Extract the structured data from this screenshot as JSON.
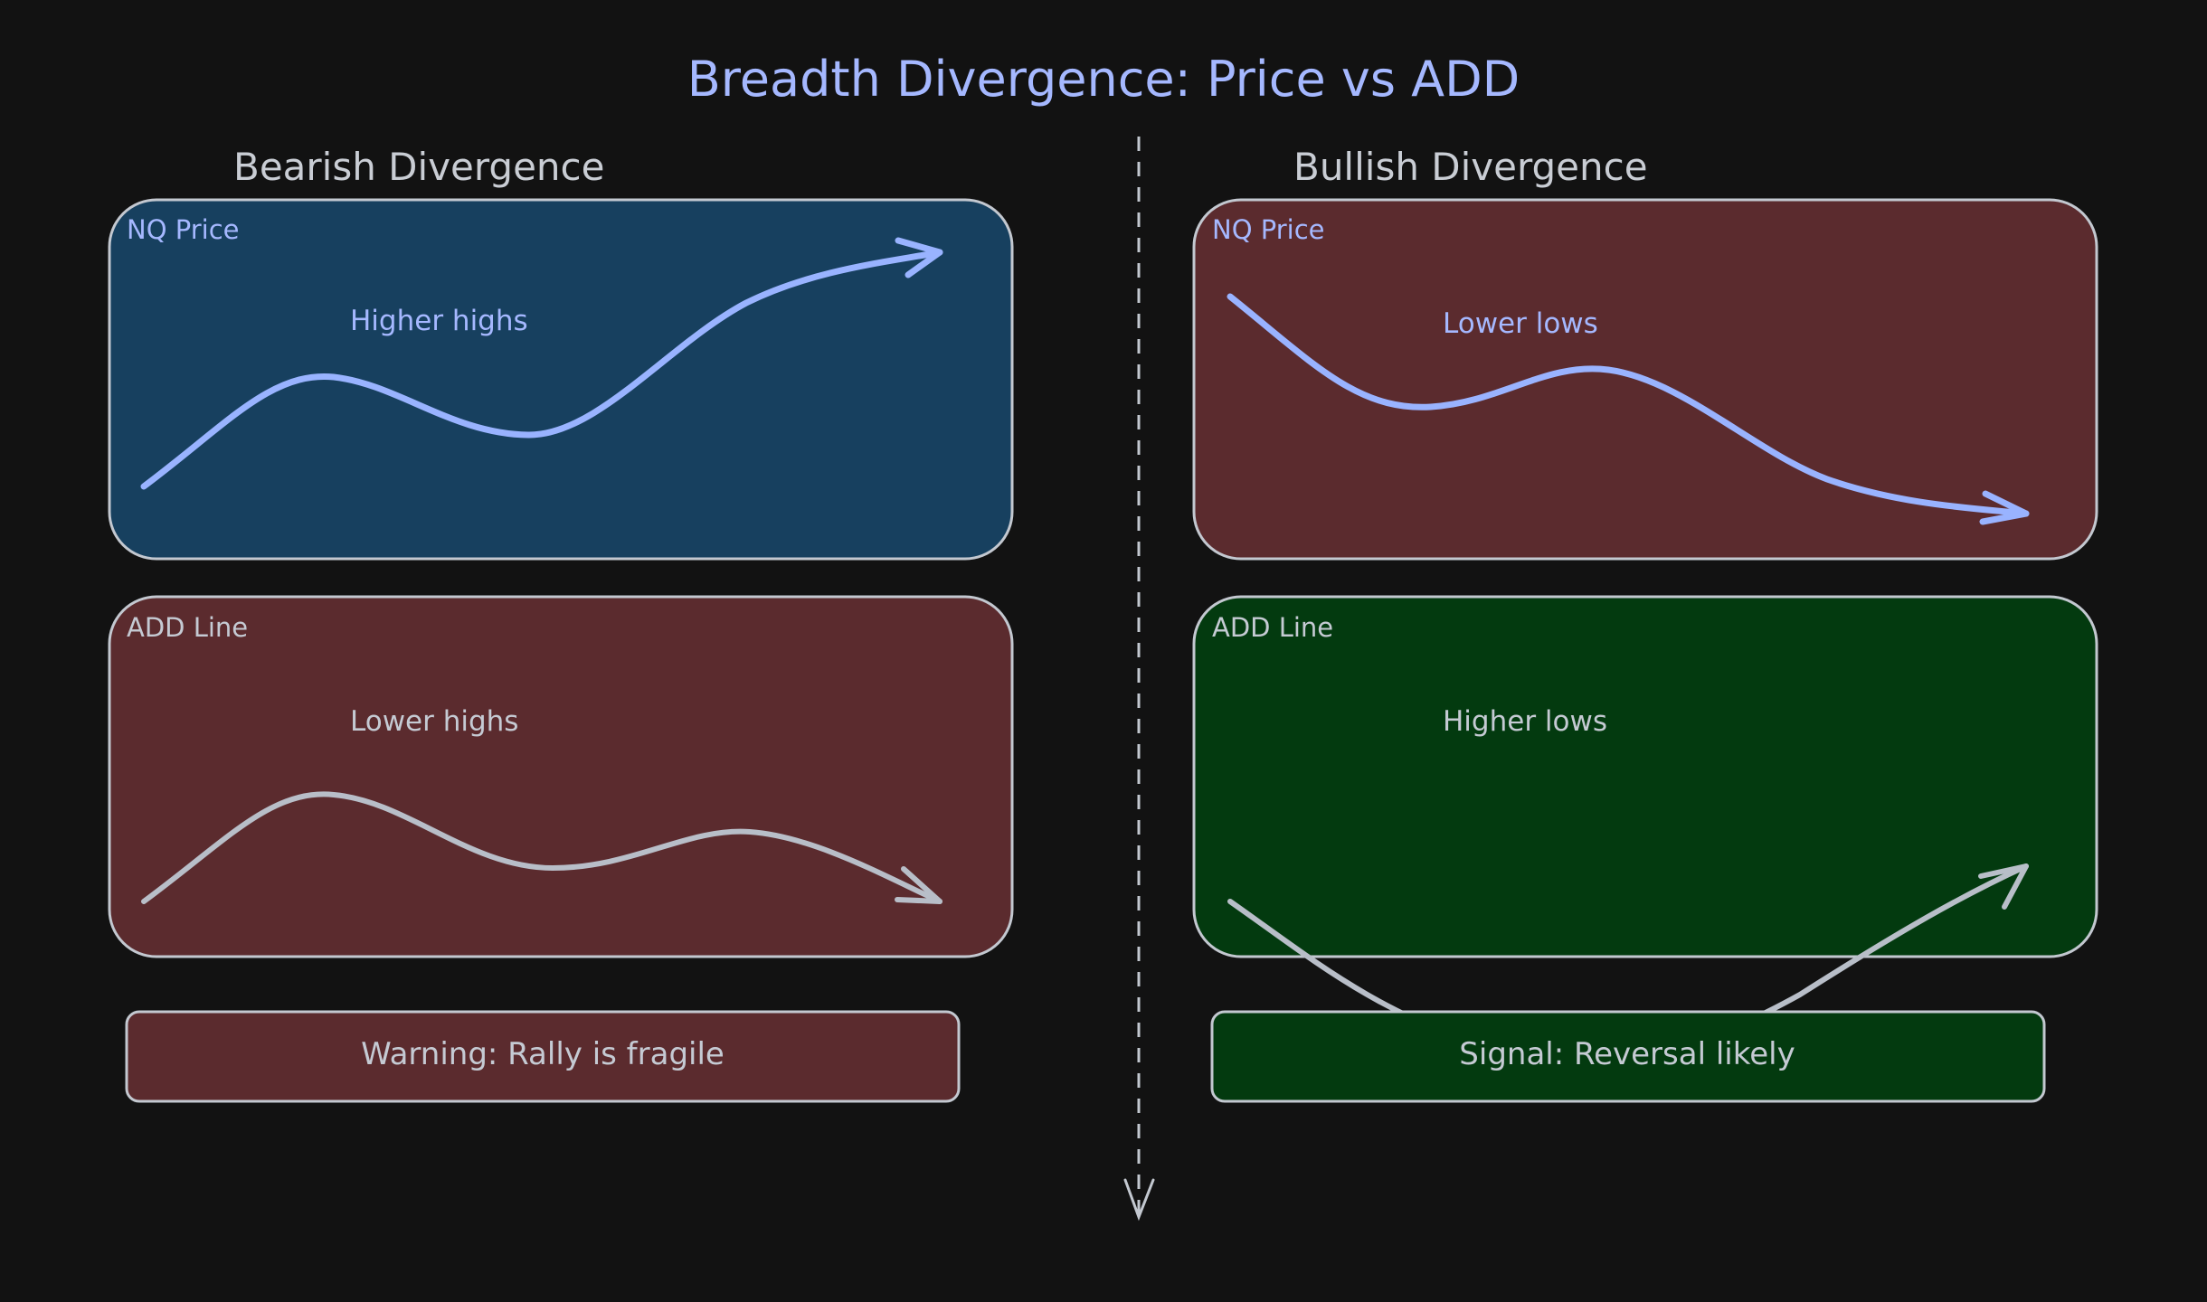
{
  "title": "Breadth Divergence: Price vs ADD",
  "colors": {
    "background": "#121212",
    "title": "#a5b8ff",
    "price_line": "#99b3ff",
    "add_line": "#b8bec8",
    "bullish_panel_fill": "#033a0f",
    "bearish_panel_fill": "#5b2b2e",
    "price_panel_fill": "#17405f",
    "stroke": "#c3c8d0"
  },
  "left": {
    "heading": "Bearish Divergence",
    "price_panel": {
      "label": "NQ Price",
      "note": "Higher highs",
      "trend": "up"
    },
    "add_panel": {
      "label": "ADD Line",
      "note": "Lower highs",
      "trend": "down"
    },
    "callout": "Warning: Rally is fragile"
  },
  "right": {
    "heading": "Bullish Divergence",
    "price_panel": {
      "label": "NQ Price",
      "note": "Lower lows",
      "trend": "down"
    },
    "add_panel": {
      "label": "ADD Line",
      "note": "Higher lows",
      "trend": "up"
    },
    "callout": "Signal: Reversal likely"
  },
  "divider": {
    "style": "dashed",
    "icon": "arrow-down-icon"
  }
}
